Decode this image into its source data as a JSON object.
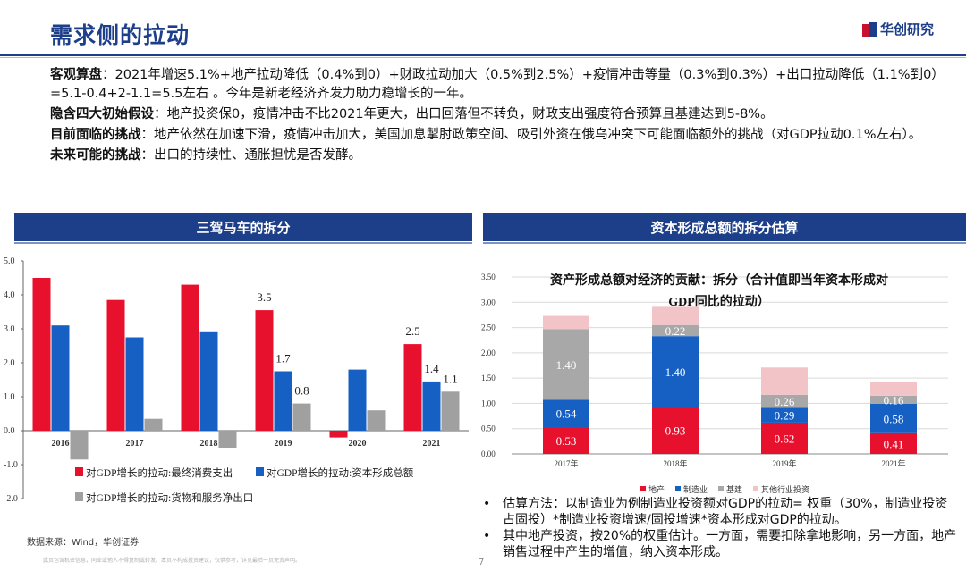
{
  "header": {
    "title": "需求侧的拉动",
    "logo_text": "华创研究"
  },
  "paragraphs": [
    {
      "lead": "客观算盘",
      "text": "：2021年增速5.1%+地产拉动降低（0.4%到0）+财政拉动加大（0.5%到2.5%）+疫情冲击等量（0.3%到0.3%）+出口拉动降低（1.1%到0）=5.1-0.4+2-1.1=5.5左右 。今年是新老经济齐发力助力稳增长的一年。"
    },
    {
      "lead": "隐含四大初始假设",
      "text": "：地产投资保0，疫情冲击不比2021年更大，出口回落但不转负，财政支出强度符合预算且基建达到5-8%。"
    },
    {
      "lead": "目前面临的挑战",
      "text": "：地产依然在加速下滑，疫情冲击加大，美国加息掣肘政策空间、吸引外资在俄乌冲突下可能面临额外的挑战（对GDP拉动0.1%左右）。"
    },
    {
      "lead": "未来可能的挑战",
      "text": "：出口的持续性、通胀担忧是否发酵。"
    }
  ],
  "left_panel": {
    "title": "三驾马车的拆分"
  },
  "right_panel": {
    "title": "资本形成总额的拆分估算"
  },
  "source": "数据来源：Wind，华创证券",
  "disclaimer": "此页包含机密信息，同业或他人不得复制或转发。本页不构成投资建议，仅供参考，详见最后一页免责声明。",
  "page_number": "7",
  "notes": [
    "估算方法：以制造业为例制造业投资额对GDP的拉动= 权重（30%，制造业投资占固投）*制造业投资增速/固投增速*资本形成对GDP的拉动。",
    "其中地产投资，按20%的权重估计。一方面，需要扣除拿地影响，另一方面，地产销售过程中产生的增值，纳入资本形成。"
  ],
  "colors": {
    "brand_blue": "#1d3f8a",
    "brand_red": "#c8102e",
    "consumption": "#e8112d",
    "capital": "#1660c4",
    "net_export": "#a0a0a0",
    "realestate": "#e8112d",
    "manufacturing": "#1660c4",
    "infrastructure": "#a8a8a8",
    "other": "#f2c4c8"
  },
  "chart_data": [
    {
      "type": "bar",
      "title": "",
      "categories": [
        "2016",
        "2017",
        "2018",
        "2019",
        "2020",
        "2021"
      ],
      "ylim": [
        -2.0,
        5.0
      ],
      "yticks": [
        "5.0",
        "4.0",
        "3.0",
        "2.0",
        "1.0",
        "0.0",
        "-1.0",
        "-2.0"
      ],
      "series": [
        {
          "name": "对GDP增长的拉动:最终消费支出",
          "values": [
            4.5,
            3.85,
            4.3,
            3.55,
            -0.2,
            2.55
          ]
        },
        {
          "name": "对GDP增长的拉动:资本形成总额",
          "values": [
            3.1,
            2.75,
            2.9,
            1.75,
            1.8,
            1.45
          ]
        },
        {
          "name": "对GDP增长的拉动:货物和服务净出口",
          "values": [
            -0.85,
            0.35,
            -0.5,
            0.8,
            0.6,
            1.15
          ]
        }
      ],
      "data_labels": [
        "3.5",
        "1.7",
        "0.8",
        "2.5",
        "1.4",
        "1.1"
      ],
      "grid": false,
      "legend_position": "bottom"
    },
    {
      "type": "bar",
      "stacked": true,
      "title": "资产形成总额对经济的贡献：拆分（合计值即当年资本形成对GDP同比的拉动）",
      "categories": [
        "2017年",
        "2018年",
        "2019年",
        "2021年"
      ],
      "ylim": [
        0,
        3.5
      ],
      "yticks": [
        "3.50",
        "3.00",
        "2.50",
        "2.00",
        "1.50",
        "1.00",
        "0.50",
        "0.00"
      ],
      "series": [
        {
          "name": "地产",
          "values": [
            0.53,
            0.93,
            0.62,
            0.41
          ],
          "labels": [
            "0.53",
            "0.93",
            "0.62",
            "0.41"
          ]
        },
        {
          "name": "制造业",
          "values": [
            0.54,
            1.4,
            0.29,
            0.58
          ],
          "labels": [
            "0.54",
            "1.40",
            "0.29",
            "0.58"
          ]
        },
        {
          "name": "基建",
          "values": [
            1.4,
            0.22,
            0.26,
            0.16
          ],
          "labels": [
            "1.40",
            "0.22",
            "0.26",
            "0.16"
          ]
        },
        {
          "name": "其他行业投资",
          "values": [
            0.26,
            0.36,
            0.54,
            0.27
          ],
          "labels": [
            "",
            "",
            "",
            ""
          ]
        }
      ],
      "grid": true,
      "legend_position": "bottom"
    }
  ]
}
